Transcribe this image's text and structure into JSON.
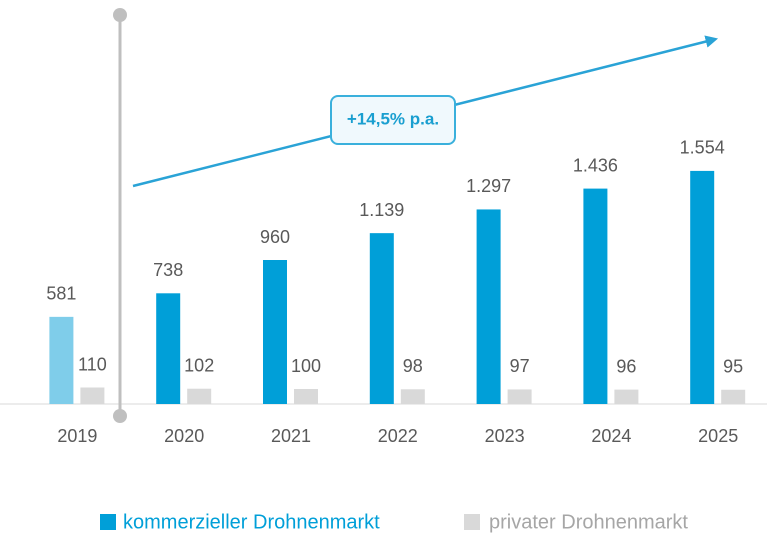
{
  "chart_data": {
    "type": "bar",
    "categories": [
      "2019",
      "2020",
      "2021",
      "2022",
      "2023",
      "2024",
      "2025"
    ],
    "series": [
      {
        "name": "kommerzieller Drohnenmarkt",
        "color": "#009fd8",
        "colors": [
          "#7fcdea",
          "#009fd8",
          "#009fd8",
          "#009fd8",
          "#009fd8",
          "#009fd8",
          "#009fd8"
        ],
        "values": [
          581,
          738,
          960,
          1139,
          1297,
          1436,
          1554
        ],
        "value_labels": [
          "581",
          "738",
          "960",
          "1.139",
          "1.297",
          "1.436",
          "1.554"
        ]
      },
      {
        "name": "privater Drohnenmarkt",
        "color": "#d9d9d9",
        "values": [
          110,
          102,
          100,
          98,
          97,
          96,
          95
        ]
      }
    ],
    "annotation": "+14,5% p.a."
  }
}
